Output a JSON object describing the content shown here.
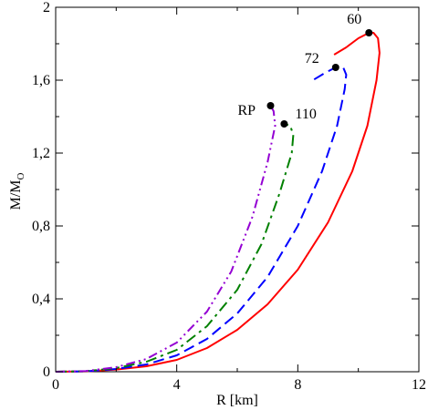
{
  "chart_data": {
    "type": "line",
    "xlabel": "R [km]",
    "ylabel": "M/M",
    "ylabel_sub": "O",
    "xlim": [
      0,
      12
    ],
    "ylim": [
      0,
      2
    ],
    "xticks": [
      0,
      4,
      8,
      12
    ],
    "yticks": [
      0,
      0.4,
      0.8,
      1.2,
      1.6,
      2.0
    ],
    "xtick_labels": [
      "0",
      "4",
      "8",
      "12"
    ],
    "ytick_labels": [
      "0",
      "0,4",
      "0,8",
      "1,2",
      "1,6",
      "2"
    ],
    "grid": false,
    "series": [
      {
        "label": "60",
        "color": "#ff0000",
        "dash": "solid",
        "marker": [
          10.35,
          1.86
        ],
        "points": [
          [
            0,
            0
          ],
          [
            1,
            0.002
          ],
          [
            2,
            0.012
          ],
          [
            3,
            0.03
          ],
          [
            4,
            0.065
          ],
          [
            5,
            0.13
          ],
          [
            6,
            0.23
          ],
          [
            7,
            0.37
          ],
          [
            8,
            0.56
          ],
          [
            9,
            0.82
          ],
          [
            9.8,
            1.1
          ],
          [
            10.3,
            1.35
          ],
          [
            10.6,
            1.6
          ],
          [
            10.7,
            1.75
          ],
          [
            10.65,
            1.83
          ],
          [
            10.5,
            1.86
          ],
          [
            10.35,
            1.86
          ],
          [
            10.0,
            1.83
          ],
          [
            9.6,
            1.78
          ],
          [
            9.2,
            1.74
          ]
        ]
      },
      {
        "label": "72",
        "color": "#0000ff",
        "dash": "dashed",
        "marker": [
          9.25,
          1.67
        ],
        "points": [
          [
            0,
            0
          ],
          [
            1,
            0.002
          ],
          [
            2,
            0.015
          ],
          [
            3,
            0.04
          ],
          [
            4,
            0.09
          ],
          [
            5,
            0.18
          ],
          [
            6,
            0.32
          ],
          [
            7,
            0.52
          ],
          [
            8,
            0.8
          ],
          [
            8.8,
            1.1
          ],
          [
            9.3,
            1.35
          ],
          [
            9.55,
            1.55
          ],
          [
            9.6,
            1.63
          ],
          [
            9.5,
            1.67
          ],
          [
            9.25,
            1.67
          ],
          [
            8.9,
            1.64
          ],
          [
            8.5,
            1.6
          ]
        ]
      },
      {
        "label": "110",
        "color": "#008000",
        "dash": "dash-dot",
        "marker": [
          7.55,
          1.36
        ],
        "points": [
          [
            0,
            0
          ],
          [
            1,
            0.003
          ],
          [
            2,
            0.02
          ],
          [
            3,
            0.055
          ],
          [
            4,
            0.12
          ],
          [
            5,
            0.25
          ],
          [
            6,
            0.45
          ],
          [
            6.8,
            0.7
          ],
          [
            7.4,
            0.98
          ],
          [
            7.8,
            1.2
          ],
          [
            7.85,
            1.3
          ],
          [
            7.75,
            1.35
          ],
          [
            7.55,
            1.36
          ]
        ]
      },
      {
        "label": "RP",
        "color": "#9400d3",
        "dash": "dash-dot-dot",
        "marker": [
          7.1,
          1.46
        ],
        "points": [
          [
            0,
            0
          ],
          [
            1,
            0.004
          ],
          [
            2,
            0.025
          ],
          [
            3,
            0.07
          ],
          [
            4,
            0.16
          ],
          [
            5,
            0.33
          ],
          [
            5.8,
            0.55
          ],
          [
            6.5,
            0.85
          ],
          [
            7.0,
            1.15
          ],
          [
            7.25,
            1.35
          ],
          [
            7.2,
            1.43
          ],
          [
            7.1,
            1.46
          ]
        ]
      }
    ]
  }
}
